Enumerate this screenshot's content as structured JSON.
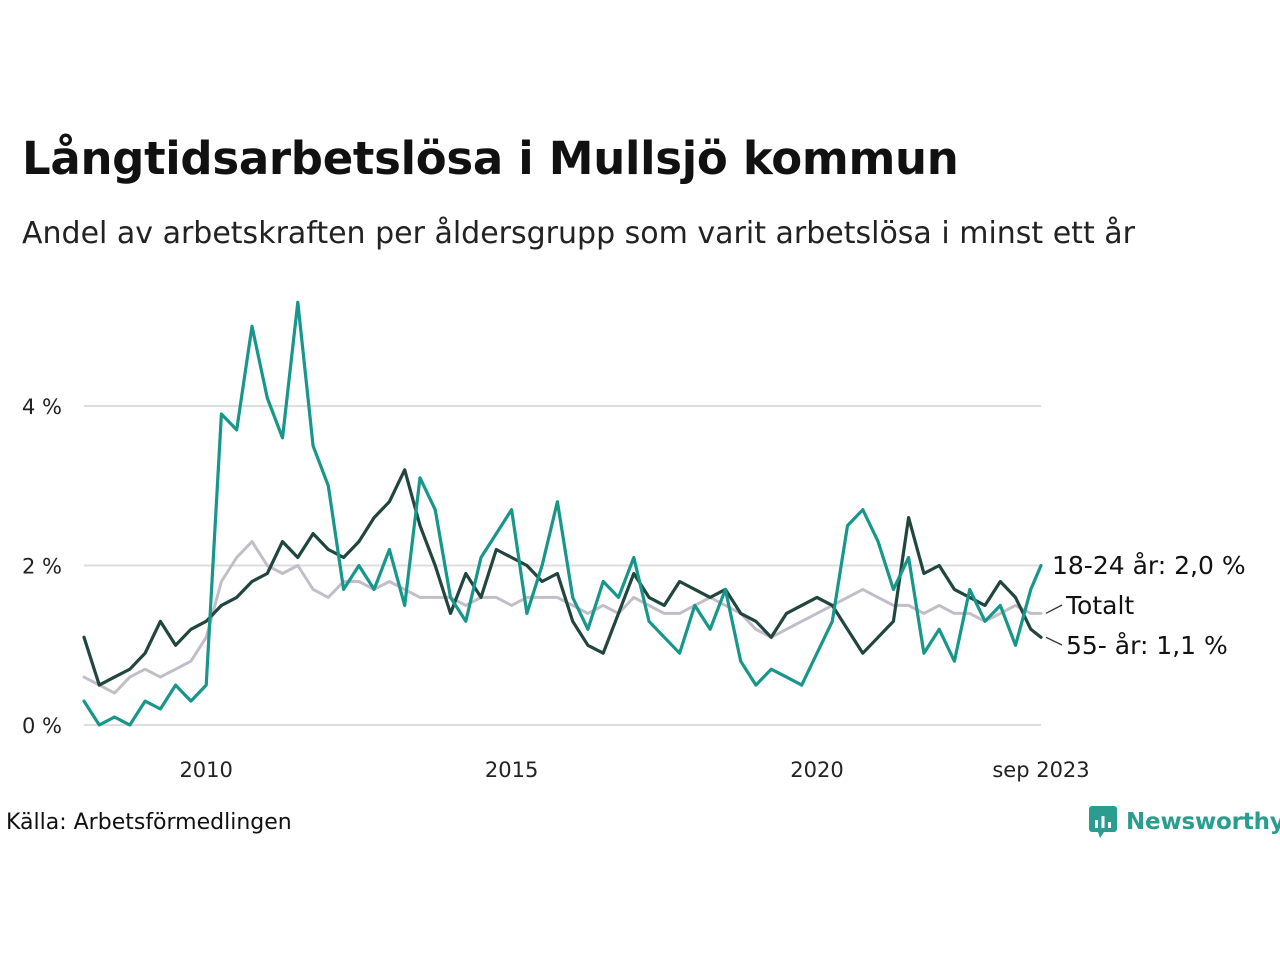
{
  "title": "Långtidsarbetslösa i Mullsjö kommun",
  "subtitle": "Andel av arbetskraften per åldersgrupp som varit arbetslösa i minst ett år",
  "source": "Källa: Arbetsförmedlingen",
  "brand": {
    "name": "Newsworthy",
    "icon": "newsworthy-logo-icon"
  },
  "colors": {
    "youth": "#16978a",
    "senior": "#21453f",
    "total": "#c2bec8",
    "grid": "#dddddd"
  },
  "chart_data": {
    "type": "line",
    "title": "Långtidsarbetslösa i Mullsjö kommun",
    "xlabel": "",
    "ylabel": "",
    "xlim": [
      2008.0,
      2023.667
    ],
    "ylim": [
      0,
      5.4
    ],
    "y_ticks": [
      {
        "value": 0,
        "label": "0 %"
      },
      {
        "value": 2,
        "label": "2 %"
      },
      {
        "value": 4,
        "label": "4 %"
      }
    ],
    "x_ticks": [
      {
        "value": 2010,
        "label": "2010"
      },
      {
        "value": 2015,
        "label": "2015"
      },
      {
        "value": 2020,
        "label": "2020"
      },
      {
        "value": 2023.667,
        "label": "sep 2023"
      }
    ],
    "series": [
      {
        "key": "total",
        "name": "Totalt",
        "end_label": "Totalt",
        "points": [
          [
            2008.0,
            0.6
          ],
          [
            2008.25,
            0.5
          ],
          [
            2008.5,
            0.4
          ],
          [
            2008.75,
            0.6
          ],
          [
            2009.0,
            0.7
          ],
          [
            2009.25,
            0.6
          ],
          [
            2009.5,
            0.7
          ],
          [
            2009.75,
            0.8
          ],
          [
            2010.0,
            1.1
          ],
          [
            2010.25,
            1.8
          ],
          [
            2010.5,
            2.1
          ],
          [
            2010.75,
            2.3
          ],
          [
            2011.0,
            2.0
          ],
          [
            2011.25,
            1.9
          ],
          [
            2011.5,
            2.0
          ],
          [
            2011.75,
            1.7
          ],
          [
            2012.0,
            1.6
          ],
          [
            2012.25,
            1.8
          ],
          [
            2012.5,
            1.8
          ],
          [
            2012.75,
            1.7
          ],
          [
            2013.0,
            1.8
          ],
          [
            2013.25,
            1.7
          ],
          [
            2013.5,
            1.6
          ],
          [
            2013.75,
            1.6
          ],
          [
            2014.0,
            1.6
          ],
          [
            2014.25,
            1.5
          ],
          [
            2014.5,
            1.6
          ],
          [
            2014.75,
            1.6
          ],
          [
            2015.0,
            1.5
          ],
          [
            2015.25,
            1.6
          ],
          [
            2015.5,
            1.6
          ],
          [
            2015.75,
            1.6
          ],
          [
            2016.0,
            1.5
          ],
          [
            2016.25,
            1.4
          ],
          [
            2016.5,
            1.5
          ],
          [
            2016.75,
            1.4
          ],
          [
            2017.0,
            1.6
          ],
          [
            2017.25,
            1.5
          ],
          [
            2017.5,
            1.4
          ],
          [
            2017.75,
            1.4
          ],
          [
            2018.0,
            1.5
          ],
          [
            2018.25,
            1.6
          ],
          [
            2018.5,
            1.5
          ],
          [
            2018.75,
            1.4
          ],
          [
            2019.0,
            1.2
          ],
          [
            2019.25,
            1.1
          ],
          [
            2019.5,
            1.2
          ],
          [
            2019.75,
            1.3
          ],
          [
            2020.0,
            1.4
          ],
          [
            2020.25,
            1.5
          ],
          [
            2020.5,
            1.6
          ],
          [
            2020.75,
            1.7
          ],
          [
            2021.0,
            1.6
          ],
          [
            2021.25,
            1.5
          ],
          [
            2021.5,
            1.5
          ],
          [
            2021.75,
            1.4
          ],
          [
            2022.0,
            1.5
          ],
          [
            2022.25,
            1.4
          ],
          [
            2022.5,
            1.4
          ],
          [
            2022.75,
            1.3
          ],
          [
            2023.0,
            1.4
          ],
          [
            2023.25,
            1.5
          ],
          [
            2023.5,
            1.4
          ],
          [
            2023.667,
            1.4
          ]
        ]
      },
      {
        "key": "senior",
        "name": "55- år",
        "end_label": "55- år: 1,1 %",
        "points": [
          [
            2008.0,
            1.1
          ],
          [
            2008.25,
            0.5
          ],
          [
            2008.5,
            0.6
          ],
          [
            2008.75,
            0.7
          ],
          [
            2009.0,
            0.9
          ],
          [
            2009.25,
            1.3
          ],
          [
            2009.5,
            1.0
          ],
          [
            2009.75,
            1.2
          ],
          [
            2010.0,
            1.3
          ],
          [
            2010.25,
            1.5
          ],
          [
            2010.5,
            1.6
          ],
          [
            2010.75,
            1.8
          ],
          [
            2011.0,
            1.9
          ],
          [
            2011.25,
            2.3
          ],
          [
            2011.5,
            2.1
          ],
          [
            2011.75,
            2.4
          ],
          [
            2012.0,
            2.2
          ],
          [
            2012.25,
            2.1
          ],
          [
            2012.5,
            2.3
          ],
          [
            2012.75,
            2.6
          ],
          [
            2013.0,
            2.8
          ],
          [
            2013.25,
            3.2
          ],
          [
            2013.5,
            2.5
          ],
          [
            2013.75,
            2.0
          ],
          [
            2014.0,
            1.4
          ],
          [
            2014.25,
            1.9
          ],
          [
            2014.5,
            1.6
          ],
          [
            2014.75,
            2.2
          ],
          [
            2015.0,
            2.1
          ],
          [
            2015.25,
            2.0
          ],
          [
            2015.5,
            1.8
          ],
          [
            2015.75,
            1.9
          ],
          [
            2016.0,
            1.3
          ],
          [
            2016.25,
            1.0
          ],
          [
            2016.5,
            0.9
          ],
          [
            2016.75,
            1.4
          ],
          [
            2017.0,
            1.9
          ],
          [
            2017.25,
            1.6
          ],
          [
            2017.5,
            1.5
          ],
          [
            2017.75,
            1.8
          ],
          [
            2018.0,
            1.7
          ],
          [
            2018.25,
            1.6
          ],
          [
            2018.5,
            1.7
          ],
          [
            2018.75,
            1.4
          ],
          [
            2019.0,
            1.3
          ],
          [
            2019.25,
            1.1
          ],
          [
            2019.5,
            1.4
          ],
          [
            2019.75,
            1.5
          ],
          [
            2020.0,
            1.6
          ],
          [
            2020.25,
            1.5
          ],
          [
            2020.5,
            1.2
          ],
          [
            2020.75,
            0.9
          ],
          [
            2021.0,
            1.1
          ],
          [
            2021.25,
            1.3
          ],
          [
            2021.5,
            2.6
          ],
          [
            2021.75,
            1.9
          ],
          [
            2022.0,
            2.0
          ],
          [
            2022.25,
            1.7
          ],
          [
            2022.5,
            1.6
          ],
          [
            2022.75,
            1.5
          ],
          [
            2023.0,
            1.8
          ],
          [
            2023.25,
            1.6
          ],
          [
            2023.5,
            1.2
          ],
          [
            2023.667,
            1.1
          ]
        ]
      },
      {
        "key": "youth",
        "name": "18-24 år",
        "end_label": "18-24 år: 2,0 %",
        "points": [
          [
            2008.0,
            0.3
          ],
          [
            2008.25,
            0.0
          ],
          [
            2008.5,
            0.1
          ],
          [
            2008.75,
            0.0
          ],
          [
            2009.0,
            0.3
          ],
          [
            2009.25,
            0.2
          ],
          [
            2009.5,
            0.5
          ],
          [
            2009.75,
            0.3
          ],
          [
            2010.0,
            0.5
          ],
          [
            2010.25,
            3.9
          ],
          [
            2010.5,
            3.7
          ],
          [
            2010.75,
            5.0
          ],
          [
            2011.0,
            4.1
          ],
          [
            2011.25,
            3.6
          ],
          [
            2011.5,
            5.3
          ],
          [
            2011.75,
            3.5
          ],
          [
            2012.0,
            3.0
          ],
          [
            2012.25,
            1.7
          ],
          [
            2012.5,
            2.0
          ],
          [
            2012.75,
            1.7
          ],
          [
            2013.0,
            2.2
          ],
          [
            2013.25,
            1.5
          ],
          [
            2013.5,
            3.1
          ],
          [
            2013.75,
            2.7
          ],
          [
            2014.0,
            1.6
          ],
          [
            2014.25,
            1.3
          ],
          [
            2014.5,
            2.1
          ],
          [
            2014.75,
            2.4
          ],
          [
            2015.0,
            2.7
          ],
          [
            2015.25,
            1.4
          ],
          [
            2015.5,
            2.0
          ],
          [
            2015.75,
            2.8
          ],
          [
            2016.0,
            1.6
          ],
          [
            2016.25,
            1.2
          ],
          [
            2016.5,
            1.8
          ],
          [
            2016.75,
            1.6
          ],
          [
            2017.0,
            2.1
          ],
          [
            2017.25,
            1.3
          ],
          [
            2017.5,
            1.1
          ],
          [
            2017.75,
            0.9
          ],
          [
            2018.0,
            1.5
          ],
          [
            2018.25,
            1.2
          ],
          [
            2018.5,
            1.7
          ],
          [
            2018.75,
            0.8
          ],
          [
            2019.0,
            0.5
          ],
          [
            2019.25,
            0.7
          ],
          [
            2019.5,
            0.6
          ],
          [
            2019.75,
            0.5
          ],
          [
            2020.0,
            0.9
          ],
          [
            2020.25,
            1.3
          ],
          [
            2020.5,
            2.5
          ],
          [
            2020.75,
            2.7
          ],
          [
            2021.0,
            2.3
          ],
          [
            2021.25,
            1.7
          ],
          [
            2021.5,
            2.1
          ],
          [
            2021.75,
            0.9
          ],
          [
            2022.0,
            1.2
          ],
          [
            2022.25,
            0.8
          ],
          [
            2022.5,
            1.7
          ],
          [
            2022.75,
            1.3
          ],
          [
            2023.0,
            1.5
          ],
          [
            2023.25,
            1.0
          ],
          [
            2023.5,
            1.7
          ],
          [
            2023.667,
            2.0
          ]
        ]
      }
    ]
  }
}
